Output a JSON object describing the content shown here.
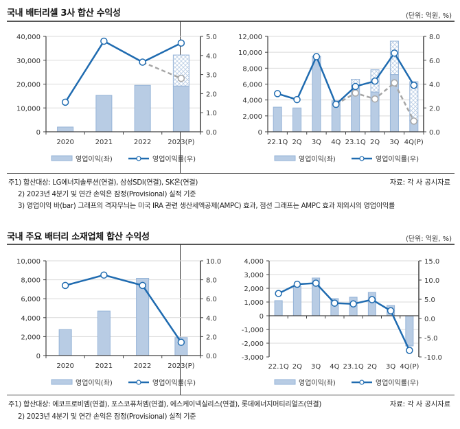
{
  "section1": {
    "title": "국내 배터리셀 3사 합산 수익성",
    "unit": "(단위: 억원, %)",
    "notes": [
      "주1) 합산대상: LG에너지솔루션(연결), 삼성SDI(연결), SK온(연결)",
      "2) 2023년 4분기 및 연간 손익은 잠정(Provisional) 실적 기준",
      "3) 영업이익 바(bar) 그래프의 격자무늬는 미국 IRA 관련 생산세액공제(AMPC) 효과, 점선 그래프는 AMPC 효과 제외시의 영업이익률"
    ],
    "source": "자료: 각 사 공시자료"
  },
  "section2": {
    "title": "국내 주요 배터리 소재업체 합산 수익성",
    "unit": "(단위: 억원, %)",
    "notes": [
      "주1) 합산대상: 에코프로비엠(연결), 포스코퓨처엠(연결), 에스케이넥실리스(연결), 롯데에너지머티리얼즈(연결)",
      "2) 2023년 4분기 및 연간 손익은 잠정(Provisional) 실적 기준"
    ],
    "source": "자료: 각 사 공시자료"
  },
  "colors": {
    "bar_fill": "#b8cce4",
    "bar_stroke": "#95b3d7",
    "line": "#1f6bb0",
    "dashed": "#a6a6a6",
    "grid": "#d9d9d9",
    "axis": "#404040"
  },
  "chart_data": [
    {
      "id": "cell-annual",
      "type": "bar+line",
      "title": "국내 배터리셀 3사 합산 수익성 (연간)",
      "categories": [
        "2020",
        "2021",
        "2022",
        "2023(P)"
      ],
      "ylim_left": [
        0,
        40000
      ],
      "yticks_left": [
        "0",
        "10,000",
        "20,000",
        "30,000",
        "40,000"
      ],
      "ylim_right": [
        0,
        5.0
      ],
      "yticks_right": [
        "0.0",
        "1.0",
        "2.0",
        "3.0",
        "4.0",
        "5.0"
      ],
      "series": [
        {
          "name": "영업이익(좌)",
          "kind": "bar",
          "axis": "left",
          "values": [
            2000,
            15300,
            19500,
            19200
          ]
        },
        {
          "name": "AMPC 효과",
          "kind": "bar-hatched-stack",
          "axis": "left",
          "values": [
            0,
            0,
            0,
            13000
          ]
        },
        {
          "name": "영업이익률(우)",
          "kind": "line",
          "axis": "right",
          "values": [
            1.55,
            4.75,
            3.65,
            4.65
          ]
        },
        {
          "name": "AMPC 제외 영업이익률",
          "kind": "dashed-line",
          "axis": "right",
          "values": [
            null,
            null,
            3.65,
            2.8
          ]
        }
      ],
      "legend": [
        "영업이익(좌)",
        "영업이익률(우)"
      ],
      "legend_position": "bottom",
      "grid": true
    },
    {
      "id": "cell-quarterly",
      "type": "bar+line",
      "title": "국내 배터리셀 3사 합산 수익성 (분기)",
      "categories": [
        "22.1Q",
        "2Q",
        "3Q",
        "4Q",
        "23.1Q",
        "2Q",
        "3Q",
        "4Q(P)"
      ],
      "ylim_left": [
        0,
        12000
      ],
      "yticks_left": [
        "0",
        "2,000",
        "4,000",
        "6,000",
        "8,000",
        "10,000",
        "12,000"
      ],
      "ylim_right": [
        0,
        8.0
      ],
      "yticks_right": [
        "0.0",
        "2.0",
        "4.0",
        "6.0",
        "8.0"
      ],
      "series": [
        {
          "name": "영업이익(좌)",
          "kind": "bar",
          "axis": "left",
          "values": [
            3100,
            3000,
            9500,
            3900,
            5800,
            5000,
            7200,
            1400
          ]
        },
        {
          "name": "AMPC 효과",
          "kind": "bar-hatched-stack",
          "axis": "left",
          "values": [
            0,
            0,
            0,
            0,
            800,
            2800,
            4200,
            4900
          ]
        },
        {
          "name": "영업이익률(우)",
          "kind": "line",
          "axis": "right",
          "values": [
            3.2,
            2.7,
            6.3,
            2.3,
            3.8,
            4.25,
            6.6,
            3.9
          ]
        },
        {
          "name": "AMPC 제외 영업이익률",
          "kind": "dashed-line",
          "axis": "right",
          "values": [
            null,
            null,
            null,
            2.3,
            3.25,
            2.75,
            4.1,
            0.9
          ]
        }
      ],
      "legend": [
        "영업이익(좌)",
        "영업이익률(우)"
      ],
      "legend_position": "bottom",
      "grid": true
    },
    {
      "id": "material-annual",
      "type": "bar+line",
      "title": "국내 주요 배터리 소재업체 합산 수익성 (연간)",
      "categories": [
        "2020",
        "2021",
        "2022",
        "2023(P)"
      ],
      "ylim_left": [
        0,
        10000
      ],
      "yticks_left": [
        "0",
        "2,000",
        "4,000",
        "6,000",
        "8,000",
        "10,000"
      ],
      "ylim_right": [
        0,
        10.0
      ],
      "yticks_right": [
        "0.0",
        "2.0",
        "4.0",
        "6.0",
        "8.0",
        "10.0"
      ],
      "series": [
        {
          "name": "영업이익(좌)",
          "kind": "bar",
          "axis": "left",
          "values": [
            2750,
            4700,
            8150,
            1900
          ]
        },
        {
          "name": "영업이익률(우)",
          "kind": "line",
          "axis": "right",
          "values": [
            7.4,
            8.5,
            7.4,
            1.4
          ]
        }
      ],
      "legend": [
        "영업이익(좌)",
        "영업이익률(우)"
      ],
      "legend_position": "bottom",
      "grid": true
    },
    {
      "id": "material-quarterly",
      "type": "bar+line",
      "title": "국내 주요 배터리 소재업체 합산 수익성 (분기)",
      "categories": [
        "22.1Q",
        "2Q",
        "3Q",
        "4Q",
        "23.1Q",
        "2Q",
        "3Q",
        "4Q(P)"
      ],
      "ylim_left": [
        -3000,
        4000
      ],
      "yticks_left": [
        "-3,000",
        "-2,000",
        "-1,000",
        "0",
        "1,000",
        "2,000",
        "3,000",
        "4,000"
      ],
      "ylim_right": [
        -10.0,
        15.0
      ],
      "yticks_right": [
        "-10.0",
        "-5.0",
        "0.0",
        "5.0",
        "10.0",
        "15.0"
      ],
      "series": [
        {
          "name": "영업이익(좌)",
          "kind": "bar",
          "axis": "left",
          "values": [
            1100,
            2150,
            2750,
            1250,
            1350,
            1700,
            750,
            -2200
          ]
        },
        {
          "name": "영업이익률(우)",
          "kind": "line",
          "axis": "right",
          "values": [
            6.5,
            8.9,
            9.2,
            4.0,
            3.8,
            4.9,
            2.0,
            -8.3
          ]
        }
      ],
      "legend": [
        "영업이익(좌)",
        "영업이익률(우)"
      ],
      "legend_position": "bottom",
      "grid": true
    }
  ]
}
